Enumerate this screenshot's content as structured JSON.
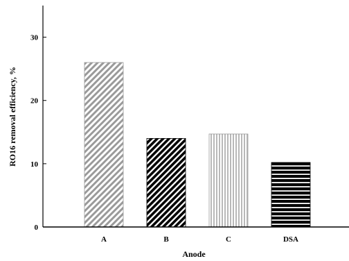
{
  "chart_data": {
    "type": "bar",
    "title": "",
    "xlabel": "Anode",
    "ylabel": "RO16 removal efficiency, %",
    "categories": [
      "A",
      "B",
      "C",
      "DSA"
    ],
    "values": [
      26.0,
      14.0,
      14.7,
      10.2
    ],
    "ylim": [
      0,
      35
    ],
    "yticks": [
      "0",
      "10",
      "20",
      "30"
    ],
    "grid": false,
    "legend": "none",
    "bar_patterns": [
      "diagonal-gray",
      "diagonal-black",
      "vertical-gray",
      "horizontal-black"
    ],
    "colors": {
      "axis": "#000000",
      "gray_fill": "#b0b0b0",
      "dark_fill": "#000000",
      "background": "#ffffff"
    }
  }
}
